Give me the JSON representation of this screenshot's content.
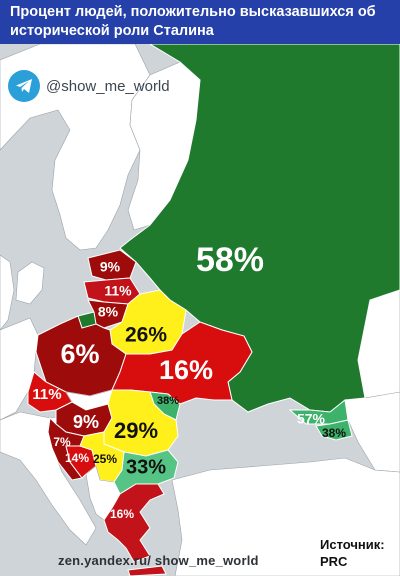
{
  "header": {
    "title": "Процент людей, положительно высказавшихся об исторической роли Сталина"
  },
  "channel": {
    "icon": "telegram-icon",
    "handle": "@show_me_world"
  },
  "footer": {
    "credit": "zen.yandex.ru/ show_me_world",
    "source_label": "Источник:",
    "source_value": "PRC"
  },
  "colors": {
    "sea": "#cfd4d8",
    "land_other": "#ffffff",
    "header_bg": "#2540a8",
    "dark_green": "#1f7a2e",
    "mid_green": "#3cb26a",
    "light_green": "#56c485",
    "yellow": "#ffef1a",
    "red": "#d80e0e",
    "dark_red": "#9e0b0b",
    "crimson": "#c2121a"
  },
  "regions": [
    {
      "id": "russia",
      "value": "58%",
      "color": "dark_green"
    },
    {
      "id": "estonia",
      "value": "9%",
      "color": "dark_red"
    },
    {
      "id": "latvia",
      "value": "11%",
      "color": "crimson"
    },
    {
      "id": "lithuania",
      "value": "8%",
      "color": "dark_red"
    },
    {
      "id": "belarus",
      "value": "26%",
      "color": "yellow"
    },
    {
      "id": "poland",
      "value": "6%",
      "color": "dark_red"
    },
    {
      "id": "ukraine",
      "value": "16%",
      "color": "red"
    },
    {
      "id": "czechia",
      "value": "11%",
      "color": "red"
    },
    {
      "id": "hungary",
      "value": "9%",
      "color": "dark_red"
    },
    {
      "id": "moldova",
      "value": "38%",
      "color": "mid_green"
    },
    {
      "id": "romania",
      "value": "29%",
      "color": "yellow"
    },
    {
      "id": "croatia",
      "value": "7%",
      "color": "dark_red"
    },
    {
      "id": "bosnia",
      "value": "14%",
      "color": "red"
    },
    {
      "id": "serbia",
      "value": "25%",
      "color": "yellow"
    },
    {
      "id": "bulgaria",
      "value": "33%",
      "color": "light_green"
    },
    {
      "id": "greece",
      "value": "16%",
      "color": "crimson"
    },
    {
      "id": "georgia",
      "value": "57%",
      "color": "mid_green"
    },
    {
      "id": "armenia",
      "value": "38%",
      "color": "mid_green"
    }
  ]
}
